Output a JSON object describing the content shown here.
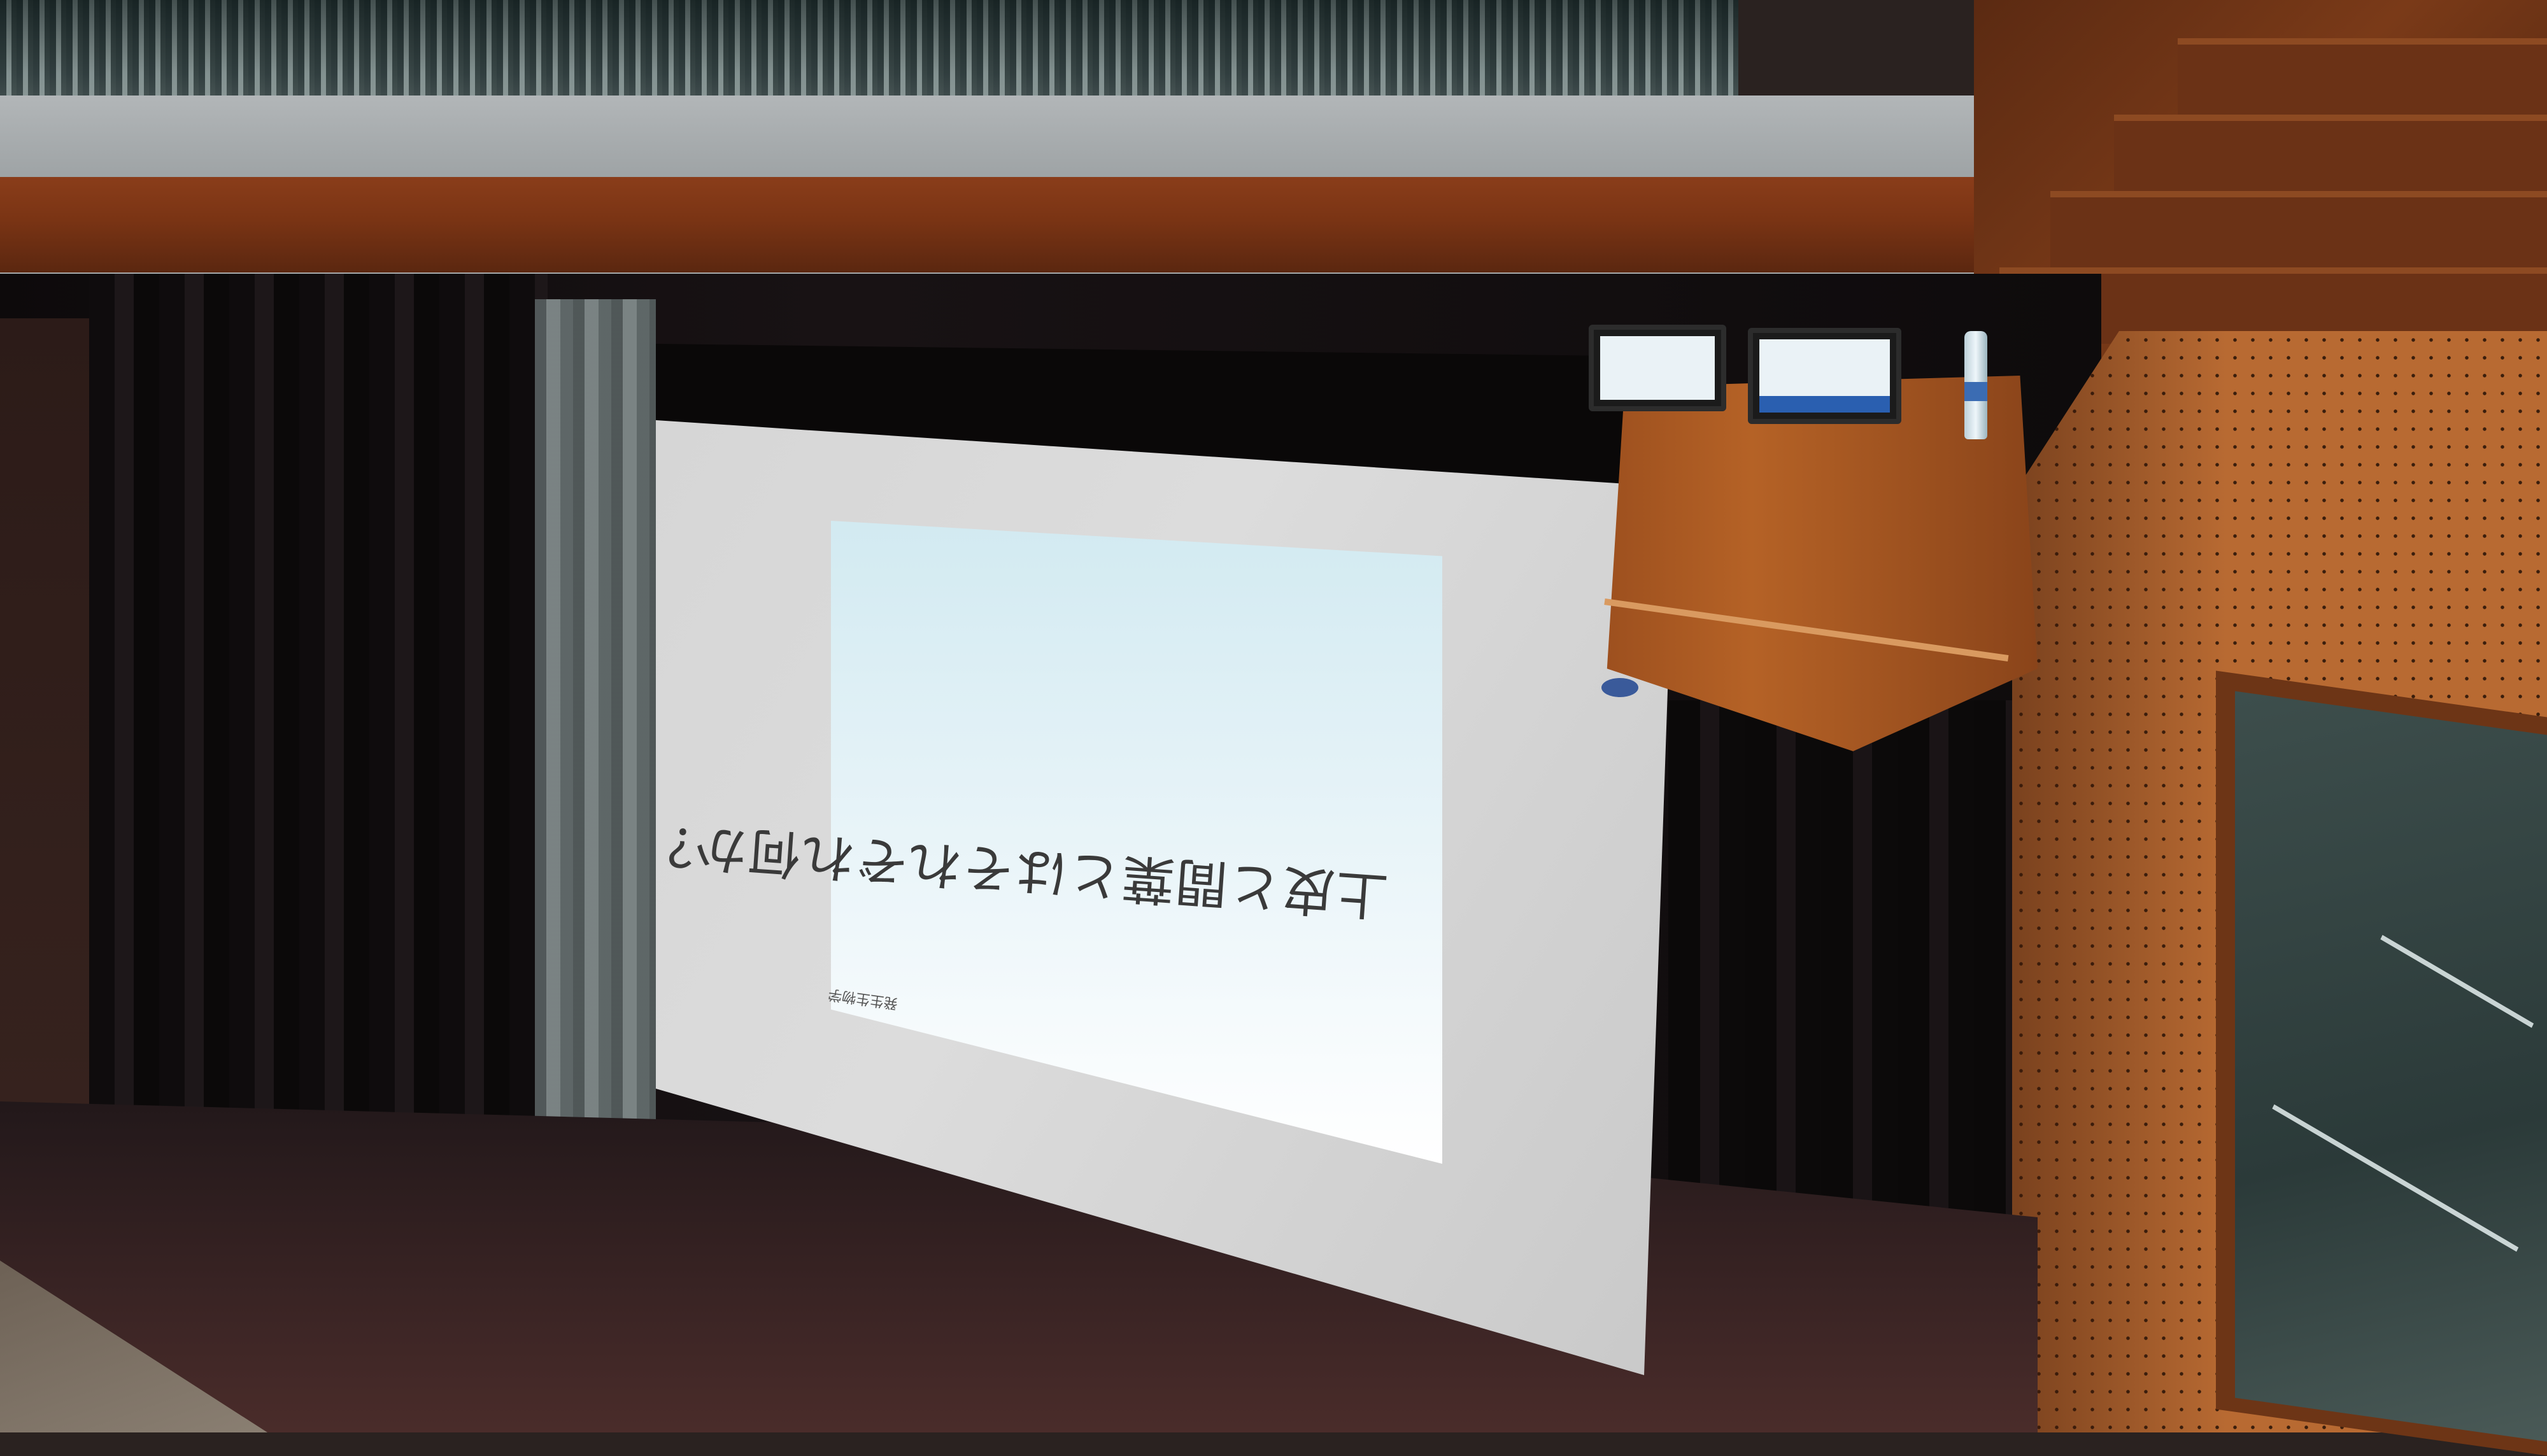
{
  "scene": {
    "slide": {
      "title": "上皮と間葉とはそれぞれ何か？",
      "footer": "発生生物学"
    }
  }
}
